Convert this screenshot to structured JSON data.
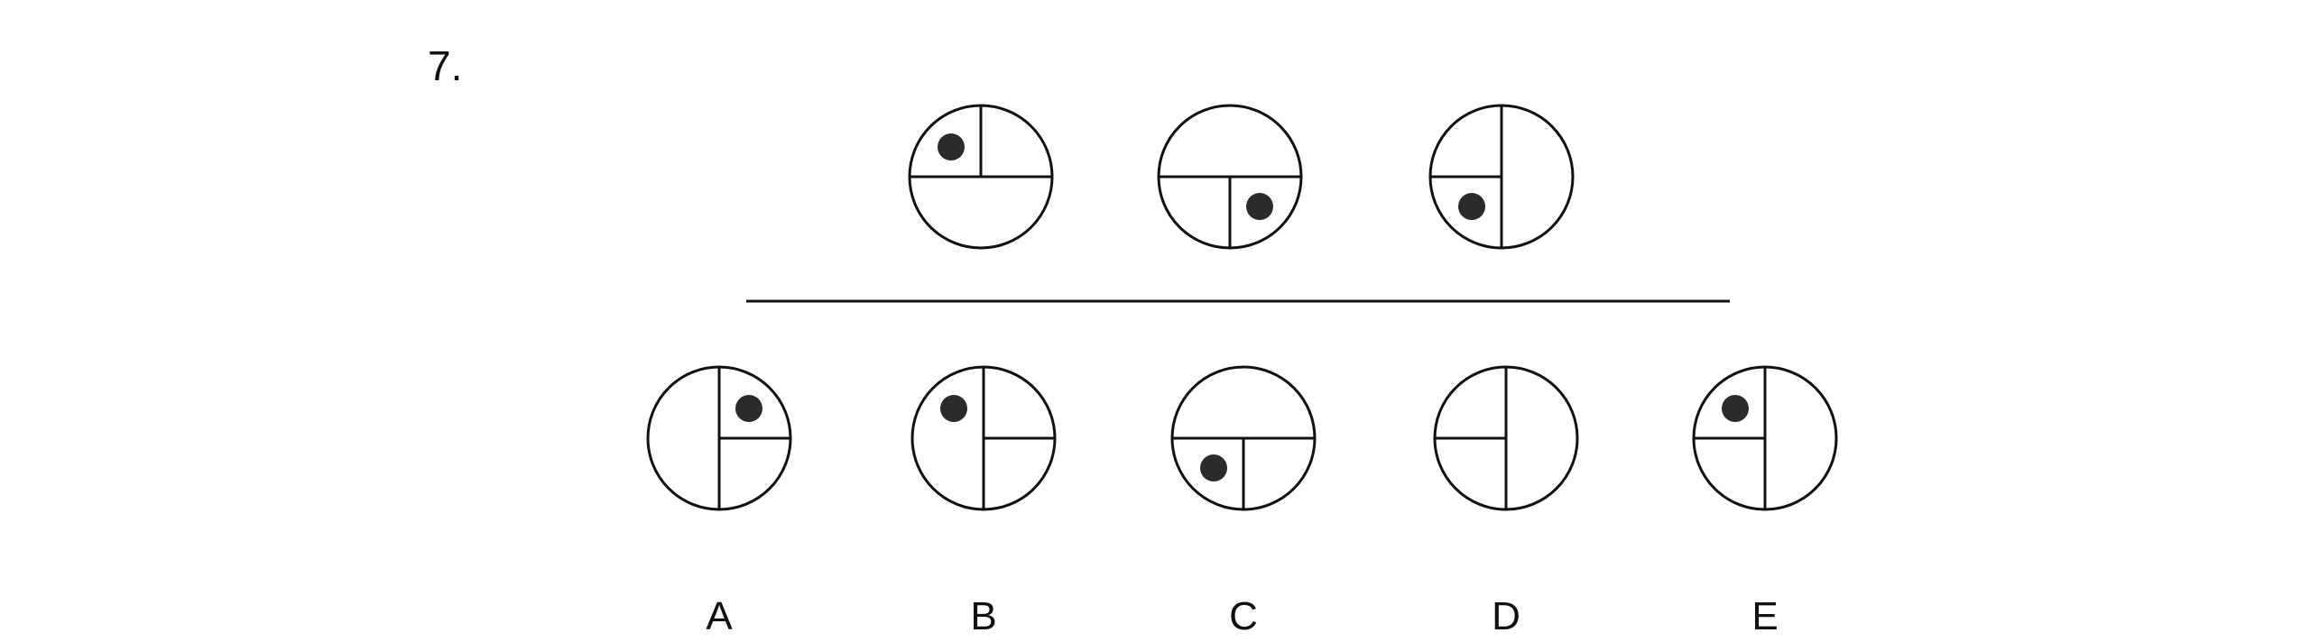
{
  "question": {
    "number": "7."
  },
  "colors": {
    "ink": "#111111",
    "dot": "#2b2b2b",
    "background": "#ffffff"
  },
  "sequence": [
    {
      "id": "seq-1",
      "divider": "horizontal-mid",
      "split": "top-vertical",
      "dot": "upper-left"
    },
    {
      "id": "seq-2",
      "divider": "horizontal-mid",
      "split": "bottom-vertical",
      "dot": "lower-right"
    },
    {
      "id": "seq-3",
      "divider": "vertical-mid",
      "split": "left-horizontal",
      "dot": "lower-left"
    }
  ],
  "options": [
    {
      "label": "A",
      "divider": "vertical-mid",
      "split": "right-horizontal",
      "dot": "upper-right"
    },
    {
      "label": "B",
      "divider": "vertical-mid",
      "split": "right-horizontal",
      "dot": "upper-left"
    },
    {
      "label": "C",
      "divider": "horizontal-mid",
      "split": "bottom-vertical",
      "dot": "lower-left"
    },
    {
      "label": "D",
      "divider": "vertical-mid",
      "split": "left-horizontal",
      "dot": "none"
    },
    {
      "label": "E",
      "divider": "vertical-mid",
      "split": "left-horizontal",
      "dot": "upper-left"
    }
  ]
}
